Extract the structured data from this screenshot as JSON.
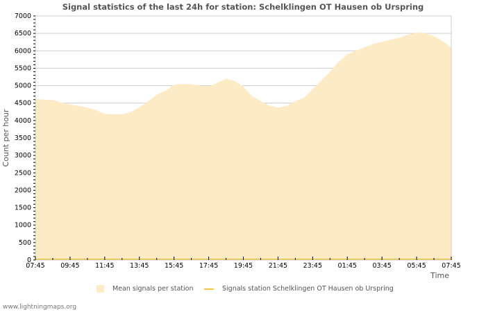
{
  "chart_data": {
    "type": "area",
    "title": "Signal statistics of the last 24h for station: Schelklingen OT Hausen ob Urspring",
    "xlabel": "Time",
    "ylabel": "Count per hour",
    "ylim": [
      0,
      7000
    ],
    "yticks": [
      "0",
      "500",
      "1000",
      "1500",
      "2000",
      "2500",
      "3000",
      "3500",
      "4000",
      "4500",
      "5000",
      "5500",
      "6000",
      "6500",
      "7000"
    ],
    "xticks": [
      "07:45",
      "09:45",
      "11:45",
      "13:45",
      "15:45",
      "17:45",
      "19:45",
      "21:45",
      "23:45",
      "01:45",
      "03:45",
      "05:45",
      "07:45"
    ],
    "grid": true,
    "legend_position": "bottom",
    "x": [
      "07:45",
      "08:15",
      "08:45",
      "09:15",
      "09:45",
      "10:15",
      "10:45",
      "11:15",
      "11:45",
      "12:15",
      "12:45",
      "13:15",
      "13:45",
      "14:15",
      "14:45",
      "15:15",
      "15:45",
      "16:15",
      "16:45",
      "17:15",
      "17:45",
      "18:15",
      "18:45",
      "19:15",
      "19:45",
      "20:15",
      "20:45",
      "21:15",
      "21:45",
      "22:15",
      "22:45",
      "23:15",
      "23:45",
      "00:15",
      "00:45",
      "01:15",
      "01:45",
      "02:15",
      "02:45",
      "03:15",
      "03:45",
      "04:15",
      "04:45",
      "05:15",
      "05:45",
      "06:15",
      "06:45",
      "07:15",
      "07:45"
    ],
    "series": [
      {
        "name": "Mean signals per station",
        "style": "area",
        "color": "#fdebc6",
        "values": [
          4620,
          4600,
          4590,
          4520,
          4460,
          4420,
          4370,
          4300,
          4190,
          4180,
          4180,
          4240,
          4380,
          4550,
          4740,
          4850,
          5030,
          5050,
          5040,
          5000,
          4980,
          5080,
          5200,
          5130,
          4980,
          4700,
          4560,
          4430,
          4370,
          4420,
          4560,
          4660,
          4900,
          5150,
          5400,
          5680,
          5900,
          6000,
          6100,
          6200,
          6260,
          6320,
          6380,
          6460,
          6530,
          6510,
          6420,
          6280,
          6090
        ]
      },
      {
        "name": "Signals station Schelklingen OT Hausen ob Urspring",
        "style": "line",
        "color": "#f5c842",
        "values": [
          0,
          0,
          0,
          0,
          0,
          0,
          0,
          0,
          0,
          0,
          0,
          0,
          0,
          0,
          0,
          0,
          0,
          0,
          0,
          0,
          0,
          0,
          0,
          0,
          0,
          0,
          0,
          0,
          0,
          0,
          0,
          0,
          0,
          0,
          0,
          0,
          0,
          0,
          0,
          0,
          0,
          0,
          0,
          0,
          0,
          0,
          0,
          0,
          0
        ]
      }
    ]
  },
  "legend": {
    "area_label": "Mean signals per station",
    "line_label": "Signals station Schelklingen OT Hausen ob Urspring"
  },
  "footer": {
    "credit": "www.lightningmaps.org"
  }
}
